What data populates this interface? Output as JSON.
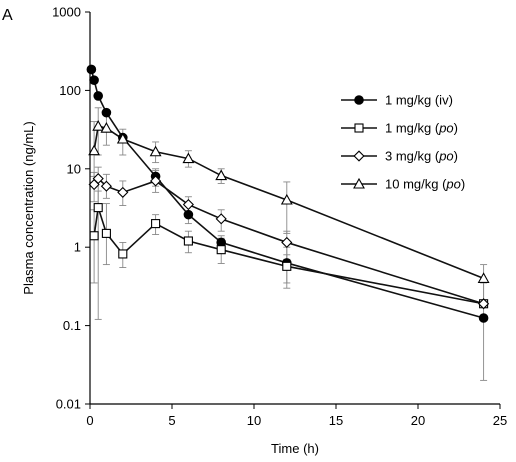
{
  "chart_data": {
    "type": "line",
    "panel_label": "A",
    "xlabel": "Time (h)",
    "ylabel": "Plasma concentration (ng/mL)",
    "xlim": [
      0,
      25
    ],
    "ylim": [
      0.01,
      1000
    ],
    "yscale": "log",
    "x_ticks": [
      0,
      5,
      10,
      15,
      20,
      25
    ],
    "x_tick_labels": [
      "0",
      "5",
      "10",
      "15",
      "20",
      "25"
    ],
    "y_ticks": [
      0.01,
      0.1,
      1,
      10,
      100,
      1000
    ],
    "y_tick_labels": [
      "0.01",
      "0.1",
      "1",
      "10",
      "100",
      "1000"
    ],
    "legend_position": "right",
    "series": [
      {
        "name": "1 mg/kg (iv)",
        "legend_plain": "1 mg/kg (iv)",
        "marker": "filled-circle",
        "points": [
          {
            "x": 0.0833,
            "y": 185
          },
          {
            "x": 0.25,
            "y": 135
          },
          {
            "x": 0.5,
            "y": 85
          },
          {
            "x": 1,
            "y": 52
          },
          {
            "x": 2,
            "y": 25
          },
          {
            "x": 4,
            "y": 8
          },
          {
            "x": 6,
            "y": 2.6
          },
          {
            "x": 8,
            "y": 1.15
          },
          {
            "x": 12,
            "y": 0.63
          },
          {
            "x": 24,
            "y": 0.125
          }
        ],
        "errors": [
          {
            "x": 4,
            "lo": 6,
            "hi": 10
          },
          {
            "x": 6,
            "lo": 2.0,
            "hi": 3.3
          },
          {
            "x": 8,
            "lo": 0.9,
            "hi": 1.4
          },
          {
            "x": 12,
            "lo": 0.35,
            "hi": 1.0
          },
          {
            "x": 24,
            "lo": 0.02,
            "hi": 0.35
          }
        ]
      },
      {
        "name": "1 mg/kg (po)",
        "legend_prefix": "1 mg/kg (",
        "legend_italic": "po",
        "legend_suffix": ")",
        "marker": "open-square",
        "points": [
          {
            "x": 0.25,
            "y": 1.4
          },
          {
            "x": 0.5,
            "y": 3.2
          },
          {
            "x": 1,
            "y": 1.5
          },
          {
            "x": 2,
            "y": 0.82
          },
          {
            "x": 4,
            "y": 2.0
          },
          {
            "x": 6,
            "y": 1.2
          },
          {
            "x": 8,
            "y": 0.93
          },
          {
            "x": 12,
            "y": 0.57
          },
          {
            "x": 24,
            "y": 0.19
          }
        ],
        "errors": [
          {
            "x": 0.25,
            "lo": 0.35,
            "hi": 3.0
          },
          {
            "x": 0.5,
            "lo": 0.12,
            "hi": 5.2
          },
          {
            "x": 1,
            "lo": 0.6,
            "hi": 3.6
          },
          {
            "x": 2,
            "lo": 0.55,
            "hi": 1.15
          },
          {
            "x": 4,
            "lo": 1.45,
            "hi": 2.6
          },
          {
            "x": 6,
            "lo": 0.85,
            "hi": 1.6
          },
          {
            "x": 8,
            "lo": 0.62,
            "hi": 1.3
          },
          {
            "x": 12,
            "lo": 0.3,
            "hi": 0.8
          }
        ]
      },
      {
        "name": "3 mg/kg (po)",
        "legend_prefix": "3 mg/kg (",
        "legend_italic": "po",
        "legend_suffix": ")",
        "marker": "open-diamond",
        "points": [
          {
            "x": 0.25,
            "y": 6.3
          },
          {
            "x": 0.5,
            "y": 7.5
          },
          {
            "x": 1,
            "y": 6.0
          },
          {
            "x": 2,
            "y": 5.0
          },
          {
            "x": 4,
            "y": 7.0
          },
          {
            "x": 6,
            "y": 3.5
          },
          {
            "x": 8,
            "y": 2.3
          },
          {
            "x": 12,
            "y": 1.15
          },
          {
            "x": 24,
            "y": 0.19
          }
        ],
        "errors": [
          {
            "x": 0.25,
            "lo": 3.8,
            "hi": 9.0
          },
          {
            "x": 0.5,
            "lo": 3.0,
            "hi": 10.5
          },
          {
            "x": 1,
            "lo": 4.2,
            "hi": 8.5
          },
          {
            "x": 2,
            "lo": 3.4,
            "hi": 7.0
          },
          {
            "x": 4,
            "lo": 5.0,
            "hi": 9.5
          },
          {
            "x": 6,
            "lo": 2.6,
            "hi": 4.4
          },
          {
            "x": 8,
            "lo": 1.6,
            "hi": 3.0
          },
          {
            "x": 12,
            "lo": 0.7,
            "hi": 1.6
          }
        ]
      },
      {
        "name": "10 mg/kg (po)",
        "legend_prefix": "10 mg/kg (",
        "legend_italic": "po",
        "legend_suffix": ")",
        "marker": "open-triangle",
        "points": [
          {
            "x": 0.25,
            "y": 17
          },
          {
            "x": 0.5,
            "y": 35
          },
          {
            "x": 1,
            "y": 33
          },
          {
            "x": 2,
            "y": 24
          },
          {
            "x": 4,
            "y": 16.5
          },
          {
            "x": 6,
            "y": 13.5
          },
          {
            "x": 8,
            "y": 8.2
          },
          {
            "x": 12,
            "y": 4.0
          },
          {
            "x": 24,
            "y": 0.4
          }
        ],
        "errors": [
          {
            "x": 0.25,
            "lo": 8,
            "hi": 40
          },
          {
            "x": 0.5,
            "lo": 15,
            "hi": 60
          },
          {
            "x": 1,
            "lo": 20,
            "hi": 48
          },
          {
            "x": 2,
            "lo": 15,
            "hi": 32
          },
          {
            "x": 4,
            "lo": 12,
            "hi": 22
          },
          {
            "x": 6,
            "lo": 10.5,
            "hi": 17
          },
          {
            "x": 8,
            "lo": 6.5,
            "hi": 10
          },
          {
            "x": 12,
            "lo": 1.5,
            "hi": 6.8
          },
          {
            "x": 24,
            "lo": 0.2,
            "hi": 0.6
          }
        ]
      }
    ]
  }
}
